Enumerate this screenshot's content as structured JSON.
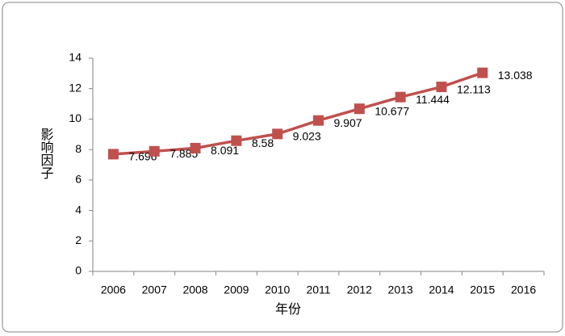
{
  "chart_data": {
    "type": "line",
    "categories": [
      "2006",
      "2007",
      "2008",
      "2009",
      "2010",
      "2011",
      "2012",
      "2013",
      "2014",
      "2015",
      "2016"
    ],
    "values": [
      7.696,
      7.885,
      8.091,
      8.58,
      9.023,
      9.907,
      10.677,
      11.444,
      12.113,
      13.038,
      null
    ],
    "color": "#c0504d",
    "xlabel": "年份",
    "ylabel": "影响因子",
    "ylim": [
      0,
      14
    ],
    "yticks": [
      0,
      2,
      4,
      6,
      8,
      10,
      12,
      14
    ],
    "grid": false
  }
}
